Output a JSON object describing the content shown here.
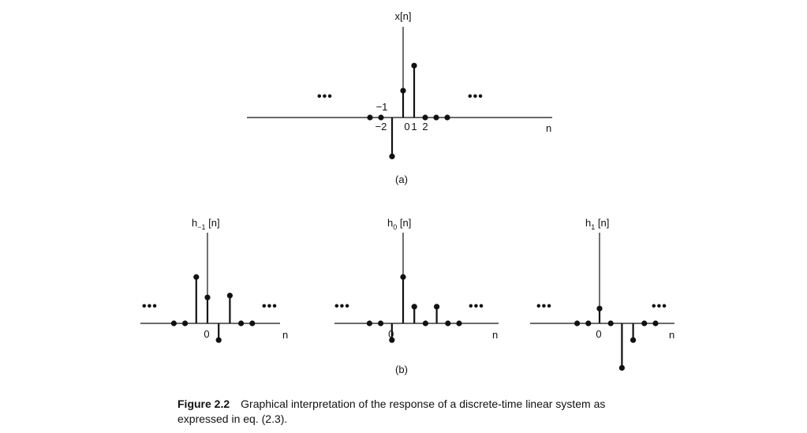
{
  "chart_data": [
    {
      "type": "stem",
      "ylabel": "x[n]",
      "xlabel": "n",
      "tick_labels": {
        "-2": "−2",
        "-1": "−1",
        "0": "0",
        "1": "1",
        "2": "2"
      },
      "points": [
        {
          "n": -3,
          "v": 0
        },
        {
          "n": -2,
          "v": 0
        },
        {
          "n": -1,
          "v": -2.1
        },
        {
          "n": 0,
          "v": 1.45
        },
        {
          "n": 1,
          "v": 2.8
        },
        {
          "n": 2,
          "v": 0
        },
        {
          "n": 3,
          "v": 0
        },
        {
          "n": 4,
          "v": 0
        }
      ],
      "ellipsis": "•••",
      "panel_label": "(a)"
    },
    {
      "type": "stem",
      "ylabel_main": "h",
      "ylabel_sub": "−1",
      "ylabel_tail": " [n]",
      "xlabel": "n",
      "tick_labels": {
        "0": "0"
      },
      "points": [
        {
          "n": -3,
          "v": 0
        },
        {
          "n": -2,
          "v": 0
        },
        {
          "n": -1,
          "v": 2.5
        },
        {
          "n": 0,
          "v": 1.4
        },
        {
          "n": 1,
          "v": -0.9
        },
        {
          "n": 2,
          "v": 1.5
        },
        {
          "n": 3,
          "v": 0
        },
        {
          "n": 4,
          "v": 0
        }
      ],
      "ellipsis": "•••"
    },
    {
      "type": "stem",
      "ylabel_main": "h",
      "ylabel_sub": "0",
      "ylabel_tail": " [n]",
      "xlabel": "n",
      "tick_labels": {
        "0": "0"
      },
      "points": [
        {
          "n": -2,
          "v": 0
        },
        {
          "n": -1,
          "v": 0
        },
        {
          "n": 0,
          "v": -0.9
        },
        {
          "n": 1,
          "v": 2.5
        },
        {
          "n": 2,
          "v": 0.9
        },
        {
          "n": 3,
          "v": 0
        },
        {
          "n": 4,
          "v": 0.9
        },
        {
          "n": 5,
          "v": 0
        },
        {
          "n": 6,
          "v": 0
        }
      ],
      "ellipsis": "•••"
    },
    {
      "type": "stem",
      "ylabel_main": "h",
      "ylabel_sub": "1",
      "ylabel_tail": " [n]",
      "xlabel": "n",
      "tick_labels": {
        "0": "0"
      },
      "points": [
        {
          "n": -2,
          "v": 0
        },
        {
          "n": -1,
          "v": 0
        },
        {
          "n": 0,
          "v": 0.8
        },
        {
          "n": 1,
          "v": 0
        },
        {
          "n": 2,
          "v": -2.4
        },
        {
          "n": 3,
          "v": -0.9
        },
        {
          "n": 4,
          "v": 0
        },
        {
          "n": 5,
          "v": 0
        }
      ],
      "ellipsis": "•••",
      "group_label": "(b)"
    }
  ],
  "caption": {
    "figure": "Figure 2.2",
    "text": "Graphical interpretation of the response of a discrete-time linear system as expressed in eq. (2.3)."
  }
}
